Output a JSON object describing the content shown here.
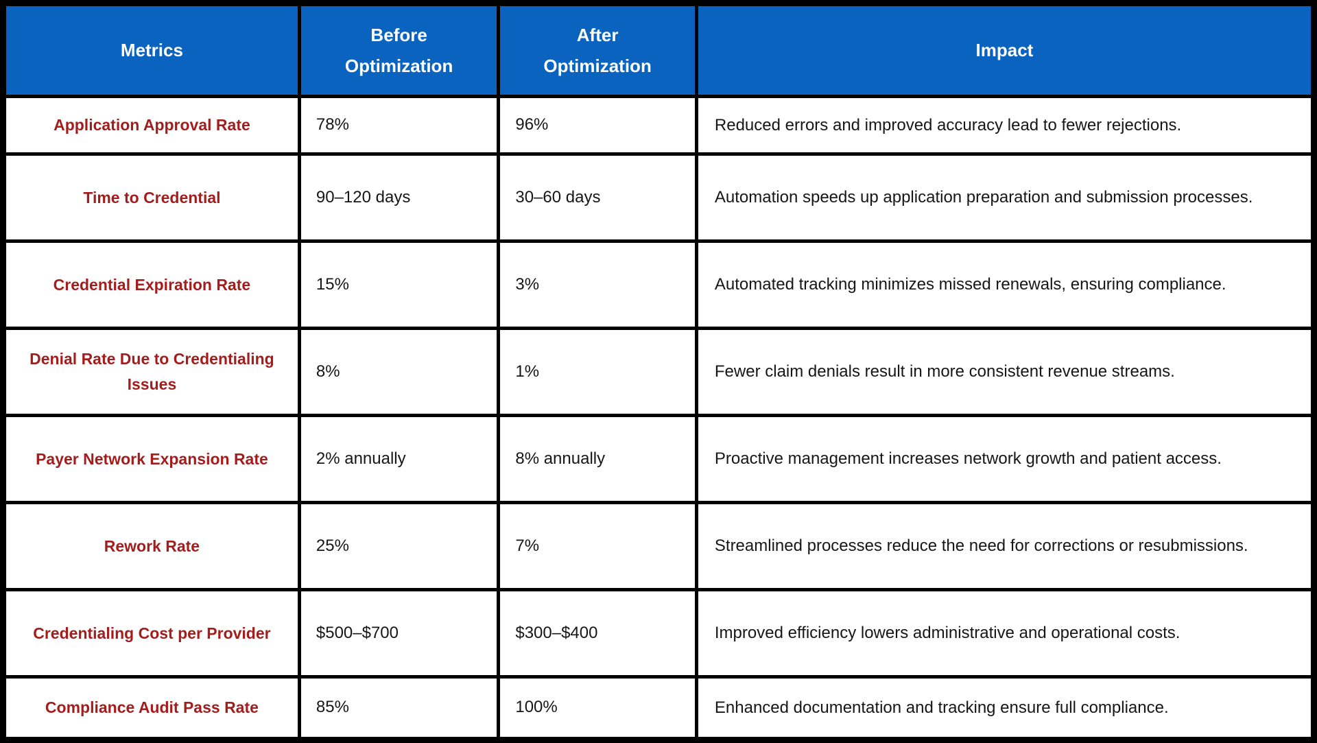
{
  "chart_data": {
    "type": "table",
    "columns": [
      "Metrics",
      "Before Optimization",
      "After Optimization",
      "Impact"
    ],
    "rows": [
      {
        "metric": "Application Approval Rate",
        "before": "78%",
        "after": "96%",
        "impact": "Reduced errors and improved accuracy lead to fewer rejections."
      },
      {
        "metric": "Time to Credential",
        "before": "90–120 days",
        "after": "30–60 days",
        "impact": "Automation speeds up application preparation and submission processes."
      },
      {
        "metric": "Credential Expiration Rate",
        "before": "15%",
        "after": "3%",
        "impact": "Automated tracking minimizes missed renewals, ensuring compliance."
      },
      {
        "metric": "Denial Rate Due to Credentialing Issues",
        "before": "8%",
        "after": "1%",
        "impact": "Fewer claim denials result in more consistent revenue streams."
      },
      {
        "metric": "Payer Network Expansion Rate",
        "before": "2% annually",
        "after": "8% annually",
        "impact": "Proactive management increases network growth and patient access."
      },
      {
        "metric": "Rework Rate",
        "before": "25%",
        "after": "7%",
        "impact": "Streamlined processes reduce the need for corrections or resubmissions."
      },
      {
        "metric": "Credentialing Cost per Provider",
        "before": "$500–$700",
        "after": "$300–$400",
        "impact": "Improved efficiency lowers administrative and operational costs."
      },
      {
        "metric": "Compliance Audit Pass Rate",
        "before": "85%",
        "after": "100%",
        "impact": "Enhanced documentation and tracking ensure full compliance."
      }
    ],
    "colors": {
      "header_bg": "#0B63C0",
      "header_text": "#FFFFFF",
      "metric_text": "#A31D1D",
      "body_text": "#161616",
      "border": "#000000",
      "cell_bg": "#FFFFFF"
    },
    "title": "",
    "legend": "none",
    "grid": "full black gridlines"
  }
}
